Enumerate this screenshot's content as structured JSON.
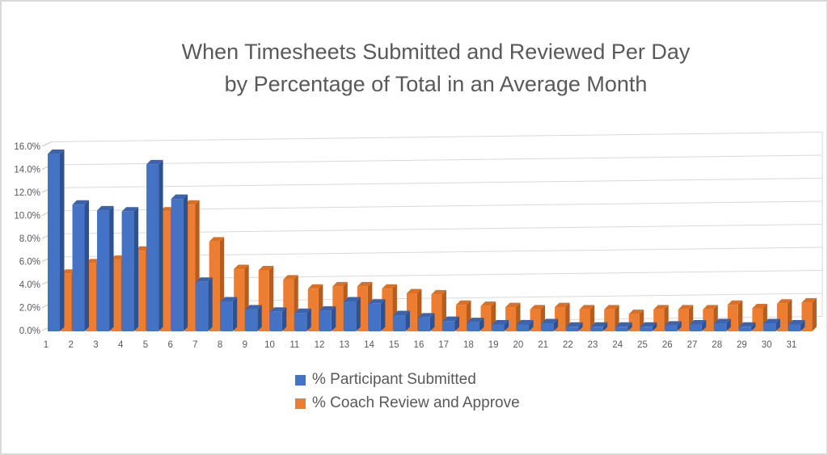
{
  "title": {
    "line1": "When Timesheets Submitted and Reviewed Per Day",
    "line2": "by Percentage of Total in an Average Month"
  },
  "colors": {
    "participant_front": "#4472C4",
    "participant_top": "#3C64AE",
    "participant_side": "#2D5191",
    "coach_front": "#ED7D31",
    "coach_top": "#DD6F22",
    "coach_side": "#B65D1D",
    "gridline": "#D9D9D9",
    "tick_connector": "#C9C9C9",
    "axis_text": "#595959",
    "title_text": "#595959",
    "frame_border": "#D9D9D9",
    "background": "#FFFFFF"
  },
  "legend": {
    "items": [
      {
        "label": "% Participant Submitted",
        "color": "#4472C4"
      },
      {
        "label": "% Coach Review and Approve",
        "color": "#ED7D31"
      }
    ]
  },
  "chart_data": {
    "type": "bar",
    "style": "3d-clustered-column",
    "title": "When Timesheets Submitted and Reviewed Per Day by Percentage of Total in an Average Month",
    "xlabel": "",
    "ylabel": "",
    "ylim": [
      0,
      16
    ],
    "grid": true,
    "legend_position": "bottom",
    "y_ticks": [
      "0.0%",
      "2.0%",
      "4.0%",
      "6.0%",
      "8.0%",
      "10.0%",
      "12.0%",
      "14.0%",
      "16.0%"
    ],
    "categories": [
      "1",
      "2",
      "3",
      "4",
      "5",
      "6",
      "7",
      "8",
      "9",
      "10",
      "11",
      "12",
      "13",
      "14",
      "15",
      "16",
      "17",
      "18",
      "19",
      "20",
      "21",
      "22",
      "23",
      "24",
      "25",
      "26",
      "27",
      "28",
      "29",
      "30",
      "31"
    ],
    "series": [
      {
        "name": "% Participant Submitted",
        "color": "#4472C4",
        "values": [
          15.4,
          11.0,
          10.5,
          10.4,
          14.5,
          11.5,
          4.3,
          2.6,
          1.9,
          1.7,
          1.6,
          1.8,
          2.6,
          2.4,
          1.4,
          1.2,
          0.9,
          0.8,
          0.6,
          0.6,
          0.7,
          0.4,
          0.4,
          0.4,
          0.4,
          0.5,
          0.6,
          0.7,
          0.4,
          0.7,
          0.6
        ]
      },
      {
        "name": "% Coach Review and Approve",
        "color": "#ED7D31",
        "values": [
          5.0,
          5.9,
          6.2,
          7.0,
          10.4,
          11.0,
          7.8,
          5.4,
          5.3,
          4.5,
          3.7,
          3.9,
          3.9,
          3.7,
          3.3,
          3.2,
          2.3,
          2.2,
          2.1,
          1.9,
          2.1,
          1.9,
          1.9,
          1.5,
          1.9,
          1.9,
          1.9,
          2.3,
          2.0,
          2.4,
          2.5
        ]
      }
    ]
  }
}
